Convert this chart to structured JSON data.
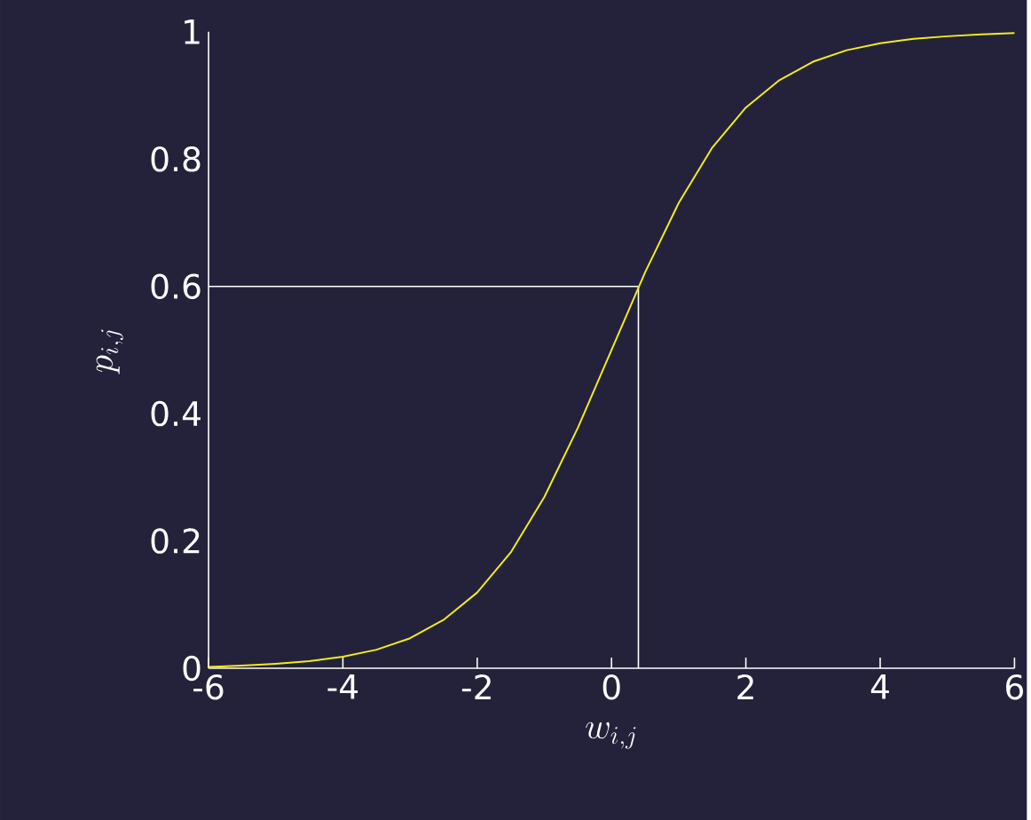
{
  "chart_data": {
    "type": "line",
    "xlabel": "w_{i,j}",
    "ylabel": "p_{i,j}",
    "x": [
      -6,
      -5.5,
      -5,
      -4.5,
      -4,
      -3.5,
      -3,
      -2.5,
      -2,
      -1.5,
      -1,
      -0.5,
      0,
      0.5,
      1,
      1.5,
      2,
      2.5,
      3,
      3.5,
      4,
      4.5,
      5,
      5.5,
      6
    ],
    "series": [
      {
        "color": "#f5ec1a",
        "values": [
          0.002,
          0.004,
          0.007,
          0.011,
          0.018,
          0.029,
          0.047,
          0.076,
          0.119,
          0.182,
          0.269,
          0.378,
          0.5,
          0.622,
          0.731,
          0.818,
          0.881,
          0.924,
          0.953,
          0.971,
          0.982,
          0.989,
          0.993,
          0.996,
          0.998
        ]
      }
    ],
    "xlim": [
      -6,
      6
    ],
    "ylim": [
      0,
      1
    ],
    "xticks": [
      -6,
      -4,
      -2,
      0,
      2,
      4,
      6
    ],
    "yticks": [
      0,
      0.2,
      0.4,
      0.6,
      0.8,
      1
    ],
    "ref_lines": [
      {
        "axis": "y",
        "value": 0.6,
        "color": "#ffffff"
      },
      {
        "axis": "x",
        "value": 0.4,
        "color": "#ffffff"
      }
    ],
    "marker": "none",
    "line_style": "solid"
  }
}
